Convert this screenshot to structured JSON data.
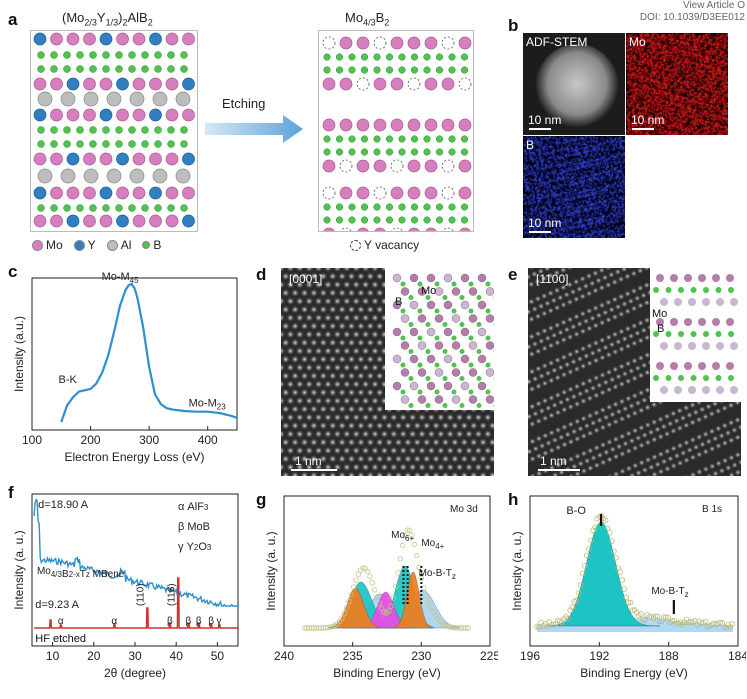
{
  "header": {
    "line1": "View Article O",
    "line2": "DOI: 10.1039/D3EE012"
  },
  "panel_a": {
    "label": "a",
    "left_formula": "(Mo2/3Y1/3)2AlB2",
    "right_formula": "Mo4/3B2",
    "arrow_text": "Etching",
    "legend": [
      {
        "name": "Mo",
        "color": "#d77fbe"
      },
      {
        "name": "Y",
        "color": "#2f7fc1"
      },
      {
        "name": "Al",
        "color": "#bdbdbd"
      },
      {
        "name": "B",
        "color": "#4fc24f"
      }
    ],
    "vacancy_text": "Y vacancy"
  },
  "panel_b": {
    "label": "b",
    "maps": [
      {
        "title": "ADF-STEM",
        "scale": "10 nm"
      },
      {
        "title": "Mo",
        "scale": "10 nm"
      },
      {
        "title": "B",
        "scale": "10 nm"
      }
    ]
  },
  "panel_c": {
    "label": "c",
    "chart_data": {
      "type": "line",
      "xlabel": "Electron Energy Loss (eV)",
      "ylabel": "Intensity (a.u.)",
      "xlim": [
        100,
        450
      ],
      "xticks": [
        100,
        200,
        300,
        400
      ],
      "color": "#2e8fd0",
      "x": [
        150,
        160,
        170,
        180,
        190,
        200,
        210,
        220,
        230,
        240,
        250,
        260,
        265,
        270,
        275,
        280,
        290,
        300,
        310,
        320,
        330,
        340,
        360,
        380,
        400,
        420,
        440,
        450
      ],
      "y": [
        0.0,
        0.12,
        0.18,
        0.22,
        0.23,
        0.24,
        0.28,
        0.36,
        0.48,
        0.65,
        0.84,
        0.96,
        0.99,
        1.0,
        0.97,
        0.9,
        0.68,
        0.4,
        0.2,
        0.13,
        0.1,
        0.09,
        0.08,
        0.075,
        0.075,
        0.065,
        0.045,
        0.03
      ],
      "annotations": [
        {
          "text": "Mo-M45",
          "main": "Mo-M",
          "sub": "45",
          "x": 270
        },
        {
          "text": "B-K",
          "main": "B-K",
          "sub": "",
          "x": 188
        },
        {
          "text": "Mo-M23",
          "main": "Mo-M",
          "sub": "23",
          "x": 405
        }
      ]
    }
  },
  "panel_d": {
    "label": "d",
    "zone": "[0001]",
    "scale": "1 nm",
    "inset_labels": [
      "B",
      "Mo"
    ]
  },
  "panel_e": {
    "label": "e",
    "zone": "[1100]",
    "scale": "1 nm",
    "inset_labels": [
      "Mo",
      "B"
    ]
  },
  "panel_f": {
    "label": "f",
    "chart_data": {
      "type": "line",
      "xlabel": "2θ (degree)",
      "ylabel": "Intensity (a. u.)",
      "xlim": [
        5,
        55
      ],
      "xticks": [
        10,
        20,
        30,
        40,
        50
      ],
      "series": [
        {
          "name": "Mo4/3B2-xTz MBene",
          "color": "#2e8fd0"
        },
        {
          "name": "HF etched",
          "color": "#d0302e"
        }
      ],
      "legend": [
        {
          "symbol": "α",
          "name": "AlF3"
        },
        {
          "symbol": "β",
          "name": "MoB"
        },
        {
          "symbol": "γ",
          "name": "Y2O3"
        }
      ],
      "annotations": {
        "d_top": "d=18.90 A",
        "d_bottom": "d=9.23 A",
        "peaks": [
          {
            "text": "(110)",
            "x": 33
          },
          {
            "text": "(116)",
            "x": 40.5
          }
        ],
        "greek_marks": [
          {
            "text": "α",
            "x": 12
          },
          {
            "text": "α",
            "x": 25
          },
          {
            "text": "β",
            "x": 38.5
          },
          {
            "text": "β",
            "x": 43
          },
          {
            "text": "β",
            "x": 45.5
          },
          {
            "text": "β",
            "x": 48.5
          },
          {
            "text": "γ",
            "x": 50.5
          }
        ]
      }
    }
  },
  "panel_g": {
    "label": "g",
    "chart_data": {
      "type": "area",
      "title": "Mo 3d",
      "xlabel": "Binding Energy (eV)",
      "ylabel": "Intensity (a. u.)",
      "xlim": [
        240,
        225
      ],
      "xticks": [
        240,
        235,
        230,
        225
      ],
      "peaks": [
        {
          "name": "Mo6+",
          "color": "#f07c1e"
        },
        {
          "name": "Mo4+",
          "color": "#1cc4c4"
        },
        {
          "name": "Mo-B-Tz",
          "color": "#a8d4f5"
        },
        {
          "name": "",
          "color": "#e84ce0"
        }
      ],
      "labels": [
        "Mo6+",
        "Mo4+",
        "Mo-B-Tz"
      ]
    }
  },
  "panel_h": {
    "label": "h",
    "chart_data": {
      "type": "area",
      "title": "B 1s",
      "xlabel": "Binding Energy (eV)",
      "ylabel": "Intensity (a. u.)",
      "xlim": [
        196,
        184
      ],
      "xticks": [
        196,
        192,
        188,
        184
      ],
      "peaks": [
        {
          "name": "B-O",
          "center": 191.9,
          "color": "#1cc4c4"
        },
        {
          "name": "Mo-B-Tz",
          "center": 187.7,
          "color": "#a8d4f5"
        }
      ]
    }
  }
}
